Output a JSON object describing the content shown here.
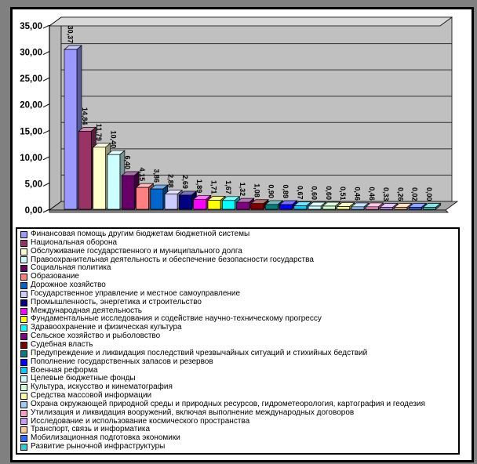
{
  "frame": {
    "outer_background": "#808080",
    "border_color": "#000000",
    "inner_background": "#FFFFFF"
  },
  "chart_data": {
    "type": "bar",
    "style": "excel-3d-column",
    "title": "",
    "legend_position": "bottom",
    "grid": true,
    "ylim": [
      0,
      35
    ],
    "yticks": [
      "35,00",
      "30,00",
      "25,00",
      "20,00",
      "15,00",
      "10,00",
      "5,00",
      "0,00"
    ],
    "ytick_values": [
      35,
      30,
      25,
      20,
      15,
      10,
      5,
      0
    ],
    "wall_color": "#C0C0C0",
    "floor_color": "#A6A6A6",
    "categories": [
      "Финансовая помощь другим бюджетам бюджетной системы",
      "Национальная оборона",
      "Обслуживание государственного и муниципального долга",
      "Правоохранительная деятельность и обеспечение безопасности государства",
      "Социальная политика",
      "Образование",
      "Дорожное хозяйство",
      "Государственное управление и местное самоуправление",
      "Промышленность, энергетика и строительство",
      "Международная деятельность",
      "Фундаментальные исследования и содействие научно-техническому прогрессу",
      "Здравоохранение и физическая культура",
      "Сельское хозяйство и рыболовство",
      "Судебная власть",
      "Предупреждение и ликвидация последствий чрезвычайных ситуаций и стихийных бедствий",
      "Пополнение государственных запасов и резервов",
      "Военная реформа",
      "Целевые бюджетные фонды",
      "Культура, искусство и кинематография",
      "Средства массовой информации",
      "Охрана окружающей природной среды и природных ресурсов, гидрометеорология, картография и геодезия",
      "Утилизация и ликвидация вооружений, включая выполнение международных договоров",
      "Исследование и использование космического пространства",
      "Транспорт, связь и информатика",
      "Мобилизационная подготовка экономики",
      "Развитие рыночной инфраструктуры"
    ],
    "values": [
      30.37,
      14.84,
      11.79,
      10.4,
      6.4,
      4.15,
      3.86,
      2.88,
      2.69,
      1.89,
      1.71,
      1.67,
      1.32,
      1.08,
      0.9,
      0.89,
      0.67,
      0.6,
      0.6,
      0.51,
      0.46,
      0.46,
      0.33,
      0.26,
      0.02,
      0.0
    ],
    "value_labels": [
      "30,37",
      "14,84",
      "11,79",
      "10,40",
      "6,40",
      "4,15",
      "3,86",
      "2,88",
      "2,69",
      "1,89",
      "1,71",
      "1,67",
      "1,32",
      "1,08",
      "0,90",
      "0,89",
      "0,67",
      "0,60",
      "0,60",
      "0,51",
      "0,46",
      "0,46",
      "0,33",
      "0,26",
      "0,02",
      "0,00"
    ],
    "colors": [
      "#9999FF",
      "#993366",
      "#FFFFCC",
      "#CCFFFF",
      "#660066",
      "#FF8080",
      "#0066CC",
      "#CCCCFF",
      "#000080",
      "#FF00FF",
      "#FFFF00",
      "#00FFFF",
      "#800080",
      "#800000",
      "#008080",
      "#0000FF",
      "#00CCFF",
      "#CCFFFF",
      "#CCFFCC",
      "#FFFF99",
      "#99CCFF",
      "#FF99CC",
      "#CC99FF",
      "#FFCC99",
      "#3366FF",
      "#33CCCC"
    ]
  }
}
